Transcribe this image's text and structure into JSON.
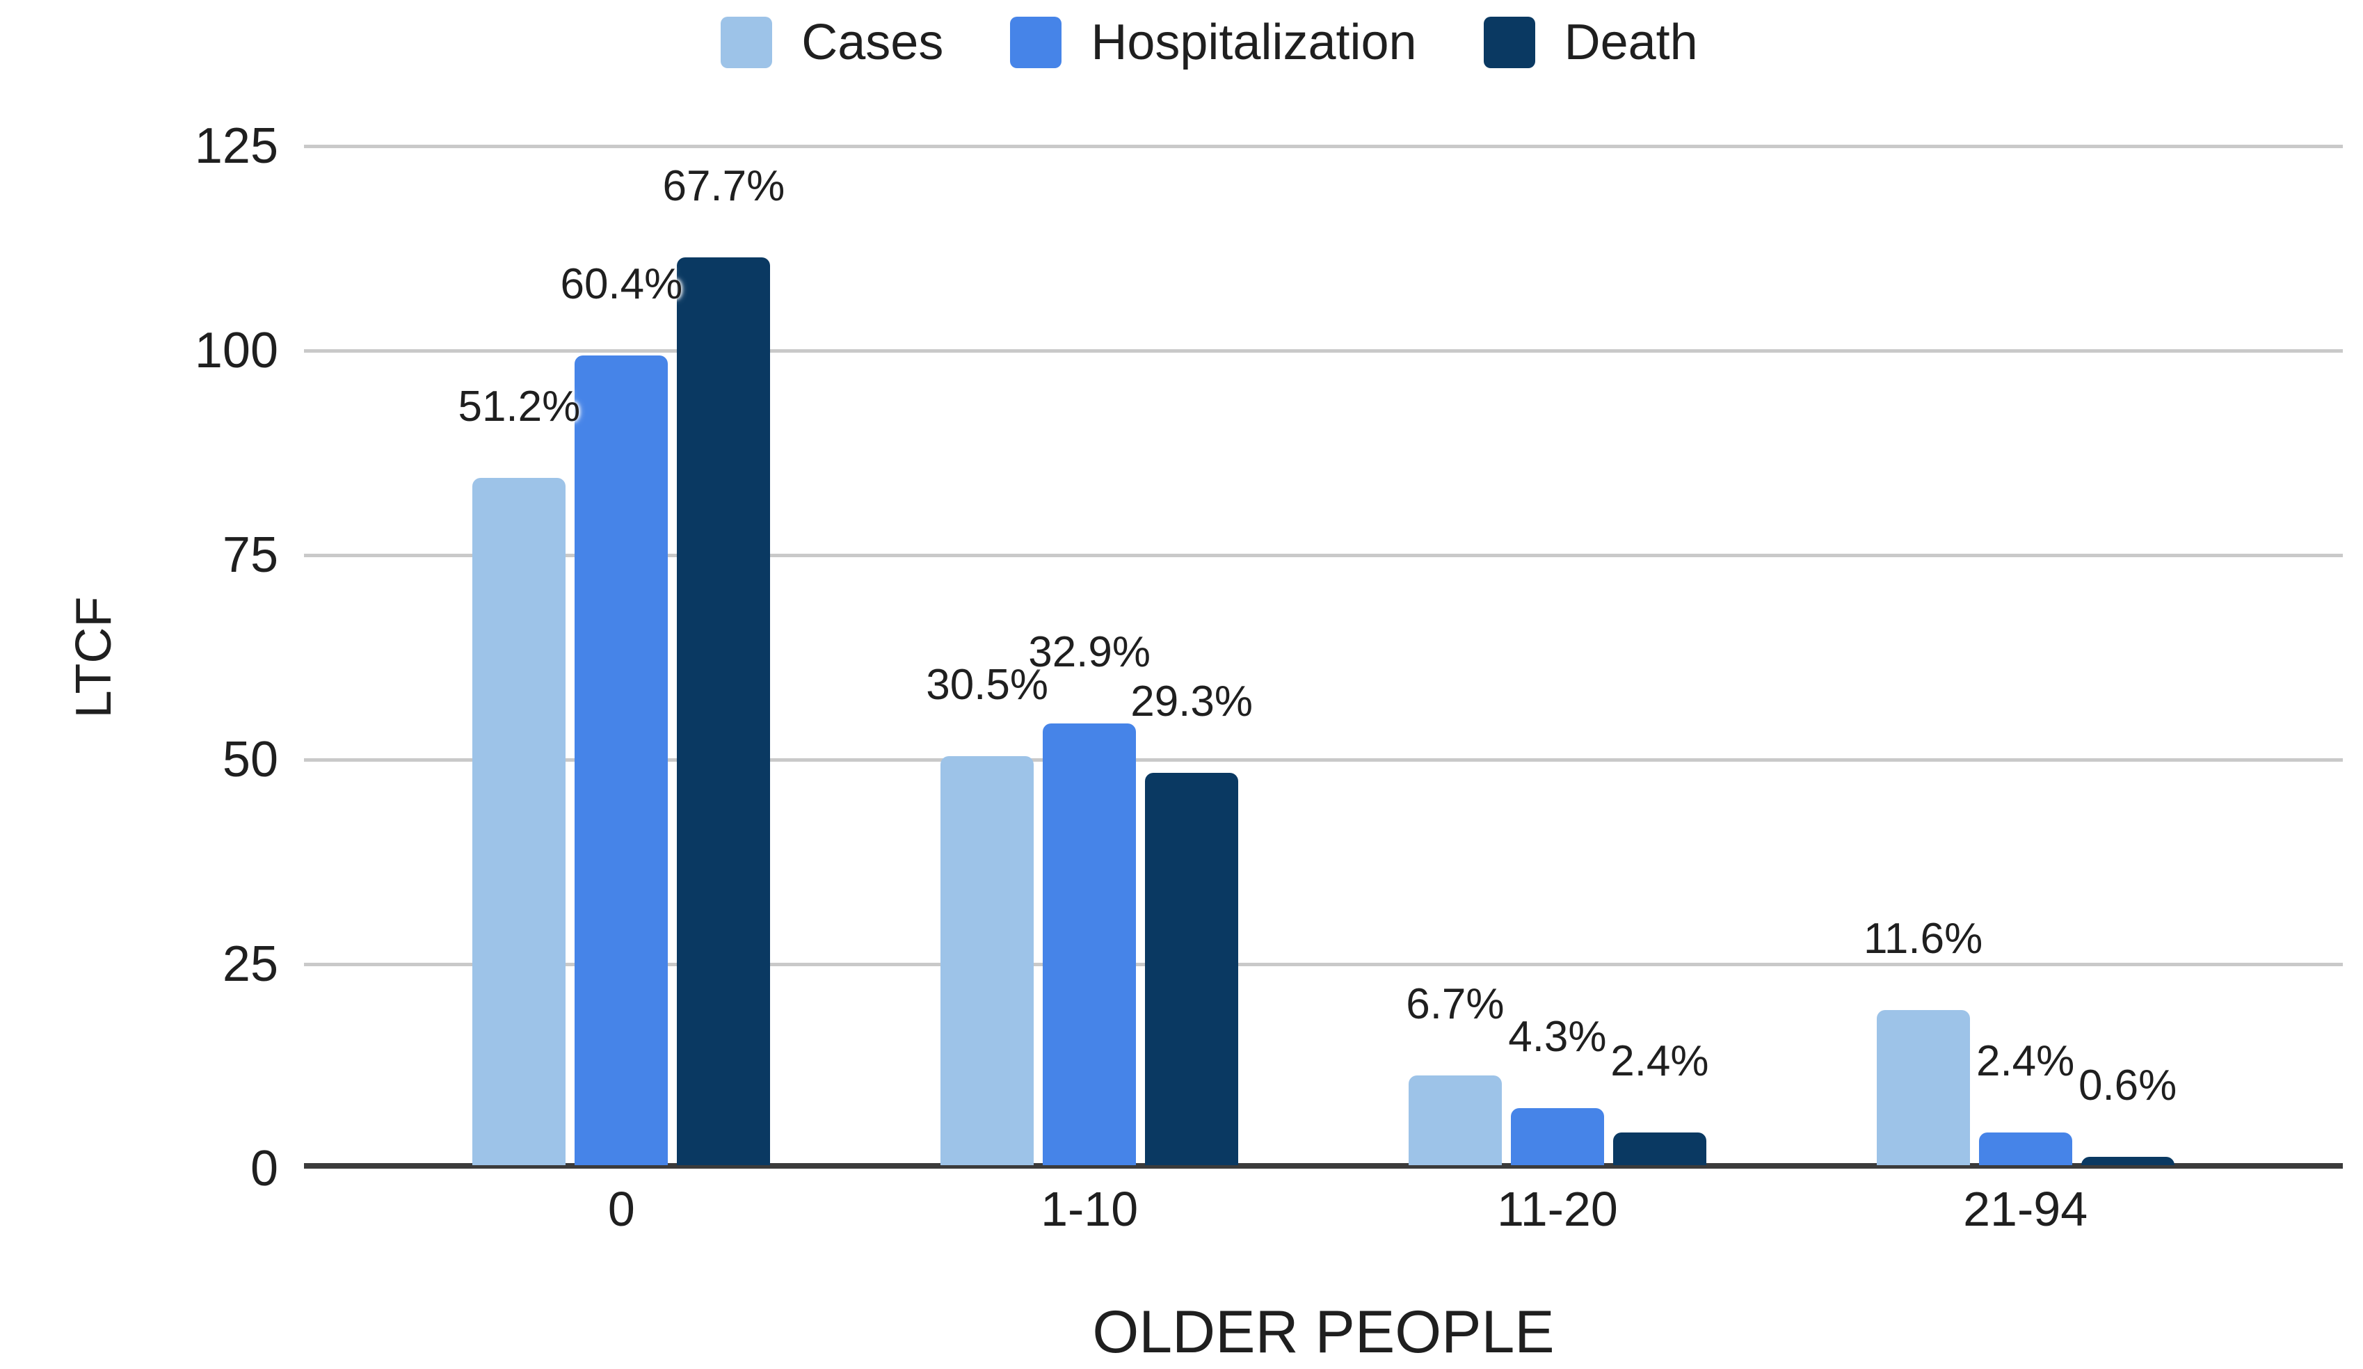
{
  "chart_data": {
    "type": "bar",
    "title": "",
    "categories": [
      "0",
      "1-10",
      "11-20",
      "21-94"
    ],
    "series": [
      {
        "name": "Cases",
        "color": "#9DC3E8",
        "values": [
          84,
          50,
          11,
          19
        ],
        "labels": [
          "51.2%",
          "30.5%",
          "6.7%",
          "11.6%"
        ]
      },
      {
        "name": "Hospitalization",
        "color": "#4684E8",
        "values": [
          99,
          54,
          7,
          4
        ],
        "labels": [
          "60.4%",
          "32.9%",
          "4.3%",
          "2.4%"
        ]
      },
      {
        "name": "Death",
        "color": "#0A3962",
        "values": [
          111,
          48,
          4,
          1
        ],
        "labels": [
          "67.7%",
          "29.3%",
          "2.4%",
          "0.6%"
        ]
      }
    ],
    "xlabel": "OLDER PEOPLE",
    "ylabel": "LTCF",
    "ylim": [
      0,
      125
    ],
    "yticks": [
      0,
      25,
      50,
      75,
      100,
      125
    ],
    "legend_position": "top",
    "grid": true
  },
  "style_colors": {
    "gridline": "#c9c9c9",
    "axis_line": "#3b3b3b",
    "text": "#1f1f1f",
    "background": "#ffffff"
  }
}
